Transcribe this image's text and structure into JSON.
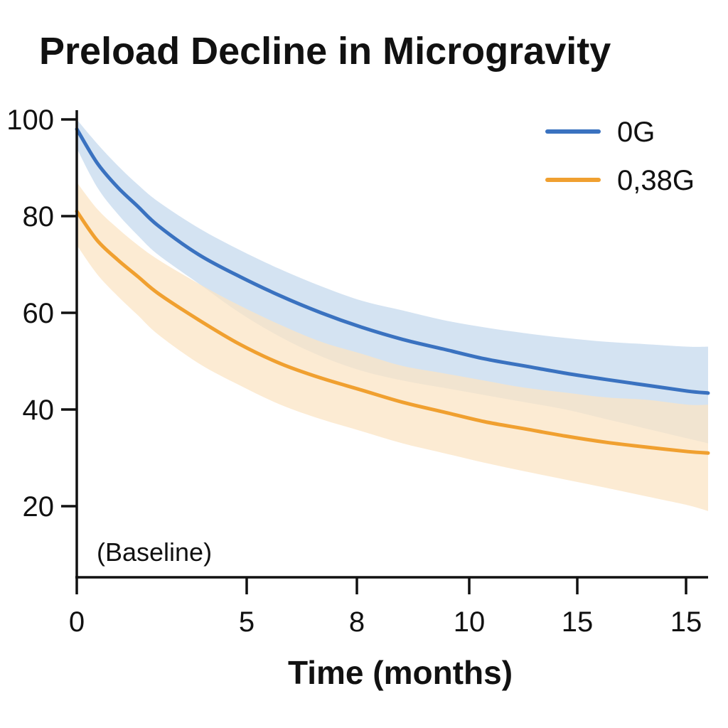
{
  "chart_data": {
    "type": "line",
    "title": "Preload Decline in Microgravity",
    "xlabel": "Time (months)",
    "ylabel": "",
    "x_ticks": [
      "0",
      "5",
      "8",
      "10",
      "15",
      "15"
    ],
    "y_ticks": [
      "20",
      "40",
      "60",
      "80",
      "100"
    ],
    "ylim": [
      10,
      100
    ],
    "annotation": "(Baseline)",
    "grid": false,
    "legend_position": "top-right",
    "series": [
      {
        "name": "0G",
        "color": "#3a72c0",
        "band_color": "#c5d9ee",
        "x_positions": [
          0,
          0.5,
          1,
          1.5,
          2,
          3,
          4,
          5,
          6,
          7,
          8,
          9,
          10,
          11,
          12,
          13,
          14,
          15,
          15.5
        ],
        "values": [
          98,
          91,
          86,
          82,
          78,
          72,
          67.5,
          63.5,
          60,
          57,
          54.5,
          52.5,
          50.5,
          49,
          47.5,
          46.2,
          45,
          43.8,
          43.4
        ],
        "upper": [
          100,
          95,
          90.5,
          86.5,
          83,
          77.5,
          73,
          69,
          65.5,
          62.5,
          60.5,
          58.5,
          57,
          55.8,
          54.8,
          54,
          53.5,
          53,
          53
        ],
        "lower": [
          94,
          86,
          80.5,
          76,
          72,
          66,
          60,
          55,
          51,
          48,
          46,
          44.5,
          43,
          41.5,
          40,
          38,
          36,
          34,
          33
        ]
      },
      {
        "name": "0,38G",
        "color": "#f0a030",
        "band_color": "#fbe4c4",
        "x_positions": [
          0,
          0.5,
          1,
          1.5,
          2,
          3,
          4,
          5,
          6,
          7,
          8,
          9,
          10,
          11,
          12,
          13,
          14,
          15,
          15.5
        ],
        "values": [
          81,
          75,
          71,
          67.5,
          64,
          58.5,
          53.5,
          49.5,
          46.5,
          44,
          41.5,
          39.5,
          37.5,
          36,
          34.5,
          33.2,
          32.2,
          31.3,
          31
        ],
        "upper": [
          87,
          81.5,
          77.5,
          74,
          71,
          66,
          61.5,
          57.5,
          54,
          51.5,
          49,
          47.5,
          46,
          44.5,
          43.5,
          42.5,
          42,
          41,
          41
        ],
        "lower": [
          74,
          68,
          63.5,
          59.5,
          55.5,
          49.5,
          45,
          41,
          38,
          35.5,
          33,
          31,
          29,
          27.2,
          25.5,
          23.8,
          22,
          20.2,
          19
        ]
      }
    ]
  }
}
